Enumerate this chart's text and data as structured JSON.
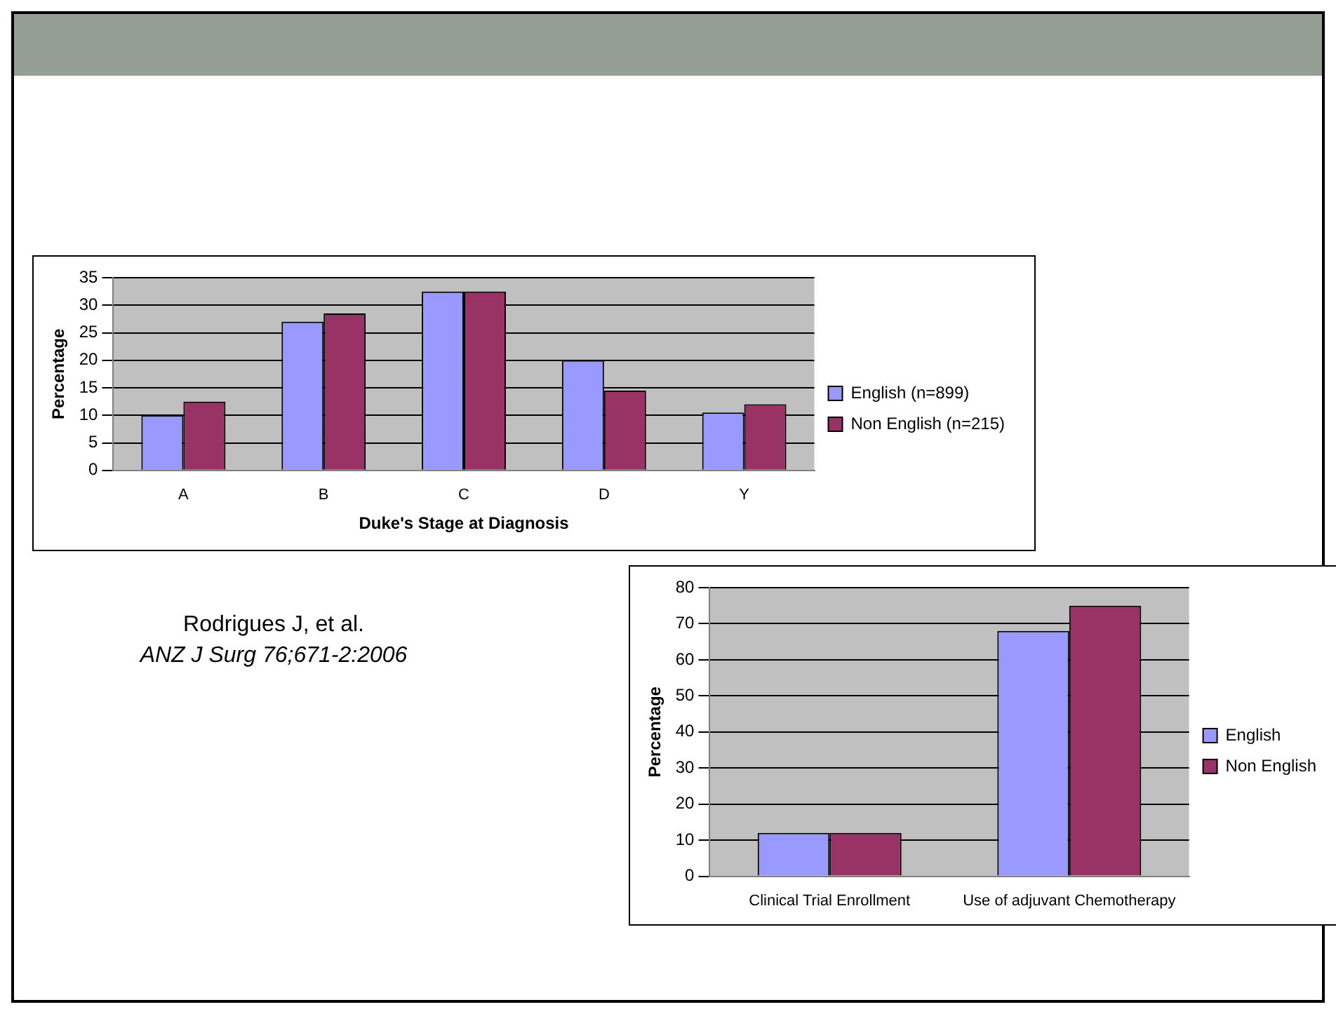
{
  "chart_data": [
    {
      "type": "bar",
      "xlabel": "Duke's Stage at Diagnosis",
      "ylabel": "Percentage",
      "categories": [
        "A",
        "B",
        "C",
        "D",
        "Y"
      ],
      "series": [
        {
          "name": "English (n=899)",
          "color": "#9999ff",
          "values": [
            10,
            27,
            32.5,
            20,
            10.5
          ]
        },
        {
          "name": "Non English (n=215)",
          "color": "#993366",
          "values": [
            12.5,
            28.5,
            32.5,
            14.5,
            12
          ]
        }
      ],
      "ylim": [
        0,
        35
      ],
      "yticks": [
        0,
        5,
        10,
        15,
        20,
        25,
        30,
        35
      ],
      "grid": "y",
      "legend": "right"
    },
    {
      "type": "bar",
      "ylabel": "Percentage",
      "categories": [
        "Clinical Trial Enrollment",
        "Use of adjuvant Chemotherapy"
      ],
      "series": [
        {
          "name": "English",
          "color": "#9999ff",
          "values": [
            12,
            68
          ]
        },
        {
          "name": "Non English",
          "color": "#993366",
          "values": [
            12,
            75
          ]
        }
      ],
      "ylim": [
        0,
        80
      ],
      "yticks": [
        0,
        10,
        20,
        30,
        40,
        50,
        60,
        70,
        80
      ],
      "grid": "y",
      "legend": "right",
      "annotations": [
        "Rodrigues J, et al.",
        "ANZ J Surg 76;671-2:2006"
      ]
    }
  ]
}
